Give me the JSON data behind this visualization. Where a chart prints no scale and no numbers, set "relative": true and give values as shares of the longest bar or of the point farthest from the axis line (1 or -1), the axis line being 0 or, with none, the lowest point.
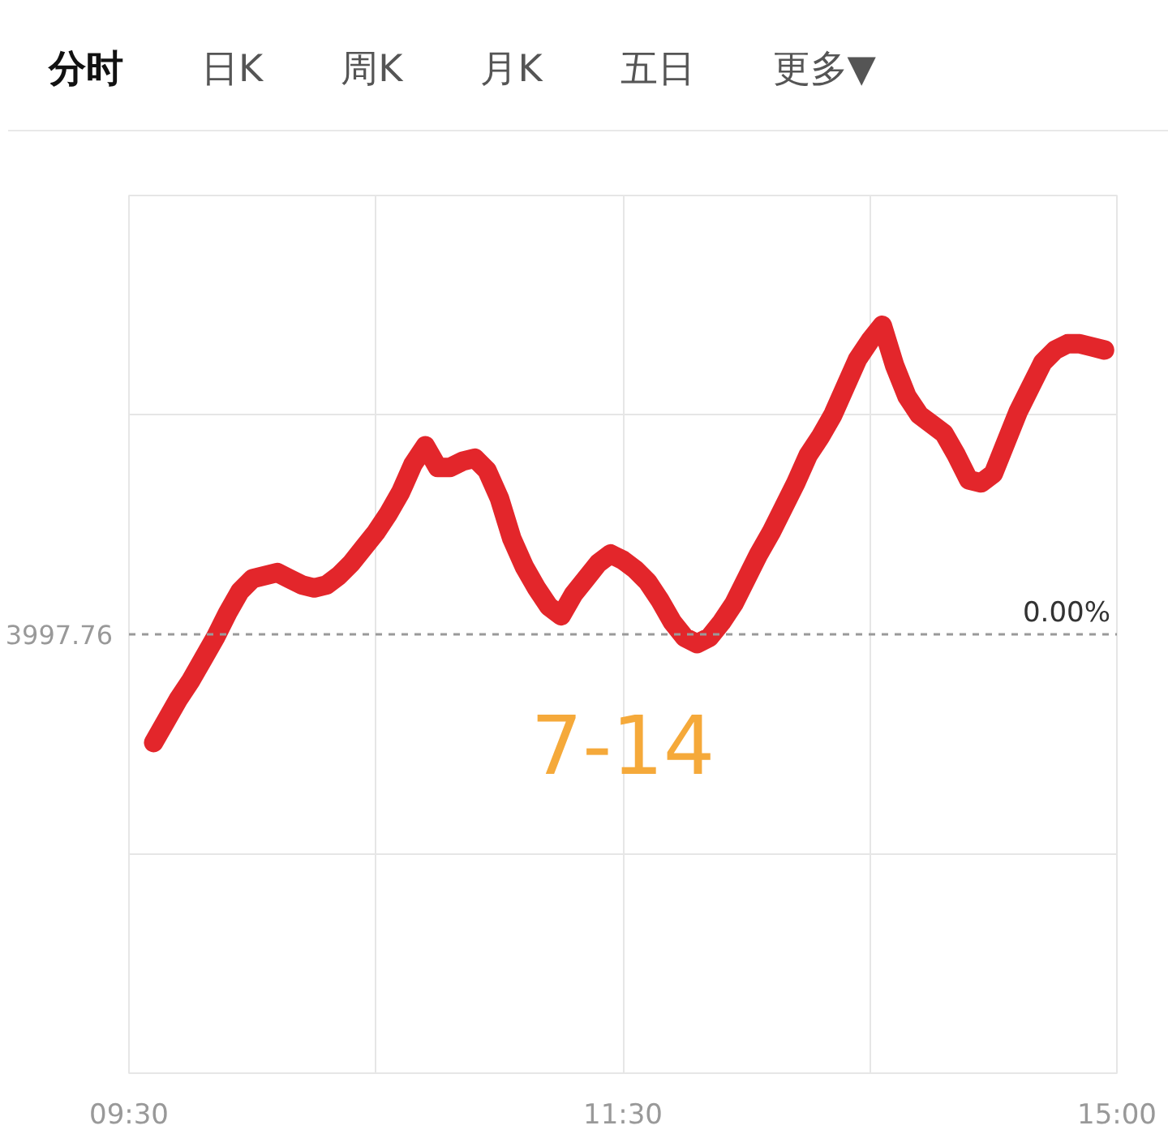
{
  "chart_data": {
    "type": "line",
    "relative": true,
    "annotations": [
      "分时",
      "日K",
      "周K",
      "月K",
      "五日",
      "更多▼",
      "7-14",
      {
        "text": "3997.76",
        "x": "09:30",
        "y": 0
      }
    ],
    "categories": [
      "09:30",
      null,
      null,
      null,
      null,
      null,
      null,
      null,
      null,
      null,
      null,
      null,
      null,
      null,
      null,
      null,
      null,
      null,
      null,
      null,
      null,
      null,
      null,
      null,
      null,
      null,
      null,
      null,
      null,
      null,
      null,
      null,
      null,
      null,
      null,
      null,
      null,
      null,
      null,
      null,
      "11:30",
      null,
      null,
      null,
      null,
      null,
      null,
      null,
      null,
      null,
      null,
      null,
      null,
      null,
      null,
      null,
      null,
      null,
      null,
      null,
      null,
      null,
      null,
      null,
      null,
      null,
      null,
      null,
      null,
      null,
      null,
      null,
      null,
      null,
      null,
      null,
      null,
      null,
      null,
      null,
      "15:00"
    ],
    "series": [
      {
        "color": "#e3262b",
        "values": [
          null,
          null,
          -0.35,
          -0.28,
          -0.21,
          -0.15,
          -0.08,
          -0.01,
          0.07,
          0.14,
          0.18,
          0.19,
          0.2,
          0.18,
          0.16,
          0.15,
          0.16,
          0.19,
          0.23,
          0.28,
          0.33,
          0.39,
          0.46,
          0.55,
          0.61,
          0.54,
          0.54,
          0.56,
          0.57,
          0.53,
          0.44,
          0.31,
          0.22,
          0.15,
          0.09,
          0.06,
          0.13,
          0.18,
          0.23,
          0.26,
          0.24,
          0.21,
          0.17,
          0.11,
          0.04,
          -0.01,
          -0.03,
          -0.01,
          0.04,
          0.1,
          0.18,
          0.26,
          0.33,
          0.41,
          0.49,
          0.58,
          0.64,
          0.71,
          0.8,
          0.89,
          0.95,
          1.0,
          0.87,
          0.77,
          0.71,
          0.68,
          0.65,
          0.58,
          0.5,
          0.49,
          0.52,
          0.62,
          0.72,
          0.8,
          0.88,
          0.92,
          0.94,
          0.94,
          0.93,
          0.92,
          null
        ]
      }
    ],
    "ref_lines": [
      {
        "axis": "y",
        "value": 0,
        "label": "0.00%",
        "line_style": "dashed"
      }
    ],
    "grid": true,
    "tick_labels": "x"
  }
}
